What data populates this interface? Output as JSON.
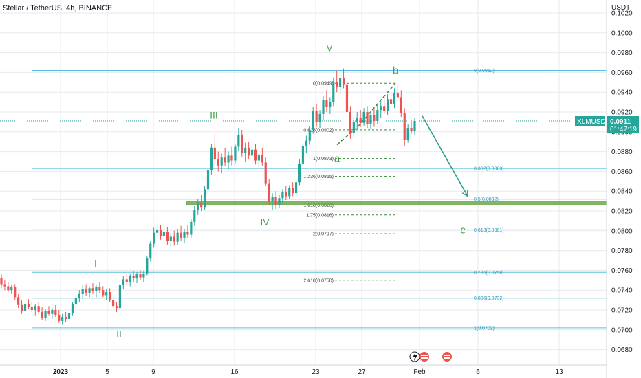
{
  "header": {
    "title": "Stellar / TetherUS, 4h, BINANCE"
  },
  "colors": {
    "up": "#26a69a",
    "down": "#ef5350",
    "fib": "#2196c4",
    "wave": "#43a047",
    "grid": "#e6e9ef",
    "support": "#6aaa4a"
  },
  "chart_data": {
    "type": "candlestick",
    "y_axis": {
      "unit_label": "USDT",
      "ticks": [
        "0.1020",
        "0.1000",
        "0.0980",
        "0.0960",
        "0.0940",
        "0.0920",
        "0.0900",
        "0.0880",
        "0.0860",
        "0.0840",
        "0.0820",
        "0.0800",
        "0.0780",
        "0.0760",
        "0.0740",
        "0.0720",
        "0.0700",
        "0.0680"
      ],
      "range": [
        0.0674,
        0.1025
      ]
    },
    "x_axis": {
      "ticks": [
        {
          "label": "2023",
          "x": 88
        },
        {
          "label": "5",
          "x": 156
        },
        {
          "label": "9",
          "x": 223
        },
        {
          "label": "16",
          "x": 341
        },
        {
          "label": "23",
          "x": 459
        },
        {
          "label": "27",
          "x": 526
        },
        {
          "label": "Feb",
          "x": 610
        },
        {
          "label": "6",
          "x": 695
        },
        {
          "label": "13",
          "x": 813
        }
      ]
    },
    "current_price": {
      "symbol": "XLMUSDT",
      "price": "0.0911",
      "countdown": "01:47:19",
      "value": 0.0911
    },
    "fib_retracement": [
      {
        "label": "0(0.0962)",
        "value": 0.0962
      },
      {
        "label": "0.382(0.0863)",
        "value": 0.0863
      },
      {
        "label": "0.5(0.0832)",
        "value": 0.0832
      },
      {
        "label": "0.618(0.0801)",
        "value": 0.0801
      },
      {
        "label": "0.786(0.0758)",
        "value": 0.0758
      },
      {
        "label": "0.886(0.0732)",
        "value": 0.0732
      },
      {
        "label": "1(0.0702)",
        "value": 0.0702
      }
    ],
    "fib_extension": [
      {
        "label": "0(0.0949)",
        "value": 0.0949
      },
      {
        "label": "0.618(0.0902)",
        "value": 0.0902
      },
      {
        "label": "1(0.0873)",
        "value": 0.0873
      },
      {
        "label": "1.236(0.0855)",
        "value": 0.0855
      },
      {
        "label": "1.618(0.0826)",
        "value": 0.0826
      },
      {
        "label": "1.75(0.0816)",
        "value": 0.0816
      },
      {
        "label": "2(0.0797)",
        "value": 0.0797
      },
      {
        "label": "2.618(0.0750)",
        "value": 0.075
      }
    ],
    "support_zone": {
      "low": 0.0826,
      "high": 0.083
    },
    "wave_labels": [
      {
        "text": "I",
        "value": 0.0767,
        "x": 139
      },
      {
        "text": "II",
        "value": 0.0696,
        "x": 173
      },
      {
        "text": "III",
        "value": 0.0917,
        "x": 311
      },
      {
        "text": "IV",
        "value": 0.0809,
        "x": 385
      },
      {
        "text": "V",
        "value": 0.0985,
        "x": 479
      },
      {
        "text": "a",
        "value": 0.0873,
        "x": 490
      },
      {
        "text": "b",
        "value": 0.0962,
        "x": 575
      },
      {
        "text": "c",
        "value": 0.0801,
        "x": 673
      }
    ],
    "forecast_arrow": {
      "from": {
        "x": 614,
        "value": 0.0916
      },
      "to": {
        "x": 680,
        "value": 0.0835
      }
    },
    "candles": [
      {
        "o": 0.0752,
        "h": 0.0756,
        "l": 0.0742,
        "c": 0.0746
      },
      {
        "o": 0.0746,
        "h": 0.075,
        "l": 0.074,
        "c": 0.0744
      },
      {
        "o": 0.0744,
        "h": 0.0748,
        "l": 0.0738,
        "c": 0.074
      },
      {
        "o": 0.074,
        "h": 0.0745,
        "l": 0.0736,
        "c": 0.0743
      },
      {
        "o": 0.0743,
        "h": 0.0746,
        "l": 0.073,
        "c": 0.0733
      },
      {
        "o": 0.0733,
        "h": 0.0736,
        "l": 0.0722,
        "c": 0.0725
      },
      {
        "o": 0.0725,
        "h": 0.073,
        "l": 0.0716,
        "c": 0.0719
      },
      {
        "o": 0.0719,
        "h": 0.0728,
        "l": 0.0716,
        "c": 0.0726
      },
      {
        "o": 0.0726,
        "h": 0.0731,
        "l": 0.0721,
        "c": 0.0723
      },
      {
        "o": 0.0723,
        "h": 0.0728,
        "l": 0.0718,
        "c": 0.072
      },
      {
        "o": 0.072,
        "h": 0.0726,
        "l": 0.0714,
        "c": 0.0724
      },
      {
        "o": 0.0724,
        "h": 0.0728,
        "l": 0.0716,
        "c": 0.0718
      },
      {
        "o": 0.0718,
        "h": 0.0723,
        "l": 0.071,
        "c": 0.0712
      },
      {
        "o": 0.0712,
        "h": 0.0721,
        "l": 0.0709,
        "c": 0.0719
      },
      {
        "o": 0.0719,
        "h": 0.0724,
        "l": 0.0714,
        "c": 0.0716
      },
      {
        "o": 0.0716,
        "h": 0.0722,
        "l": 0.0711,
        "c": 0.072
      },
      {
        "o": 0.072,
        "h": 0.0725,
        "l": 0.0713,
        "c": 0.0715
      },
      {
        "o": 0.0715,
        "h": 0.072,
        "l": 0.0707,
        "c": 0.0709
      },
      {
        "o": 0.0709,
        "h": 0.0716,
        "l": 0.0705,
        "c": 0.0713
      },
      {
        "o": 0.0713,
        "h": 0.0718,
        "l": 0.0708,
        "c": 0.0711
      },
      {
        "o": 0.0711,
        "h": 0.0719,
        "l": 0.0707,
        "c": 0.0717
      },
      {
        "o": 0.0717,
        "h": 0.0728,
        "l": 0.0714,
        "c": 0.0726
      },
      {
        "o": 0.0726,
        "h": 0.0735,
        "l": 0.0722,
        "c": 0.0732
      },
      {
        "o": 0.0732,
        "h": 0.074,
        "l": 0.0728,
        "c": 0.0736
      },
      {
        "o": 0.0736,
        "h": 0.0745,
        "l": 0.0731,
        "c": 0.0741
      },
      {
        "o": 0.0741,
        "h": 0.0746,
        "l": 0.0734,
        "c": 0.0737
      },
      {
        "o": 0.0737,
        "h": 0.0744,
        "l": 0.0733,
        "c": 0.0742
      },
      {
        "o": 0.0742,
        "h": 0.0747,
        "l": 0.0736,
        "c": 0.0739
      },
      {
        "o": 0.0739,
        "h": 0.0745,
        "l": 0.0733,
        "c": 0.0743
      },
      {
        "o": 0.0743,
        "h": 0.0748,
        "l": 0.0737,
        "c": 0.074
      },
      {
        "o": 0.074,
        "h": 0.0744,
        "l": 0.0733,
        "c": 0.0735
      },
      {
        "o": 0.0735,
        "h": 0.0741,
        "l": 0.073,
        "c": 0.0738
      },
      {
        "o": 0.0738,
        "h": 0.0742,
        "l": 0.0728,
        "c": 0.073
      },
      {
        "o": 0.073,
        "h": 0.0735,
        "l": 0.0722,
        "c": 0.0724
      },
      {
        "o": 0.0724,
        "h": 0.0728,
        "l": 0.0718,
        "c": 0.0722
      },
      {
        "o": 0.0722,
        "h": 0.0748,
        "l": 0.072,
        "c": 0.0745
      },
      {
        "o": 0.0745,
        "h": 0.0754,
        "l": 0.0741,
        "c": 0.0751
      },
      {
        "o": 0.0751,
        "h": 0.0756,
        "l": 0.0745,
        "c": 0.0748
      },
      {
        "o": 0.0748,
        "h": 0.0757,
        "l": 0.0744,
        "c": 0.0754
      },
      {
        "o": 0.0754,
        "h": 0.0759,
        "l": 0.0748,
        "c": 0.0752
      },
      {
        "o": 0.0752,
        "h": 0.0758,
        "l": 0.0747,
        "c": 0.0756
      },
      {
        "o": 0.0756,
        "h": 0.076,
        "l": 0.075,
        "c": 0.0753
      },
      {
        "o": 0.0753,
        "h": 0.0759,
        "l": 0.0748,
        "c": 0.0757
      },
      {
        "o": 0.0757,
        "h": 0.0775,
        "l": 0.0755,
        "c": 0.0772
      },
      {
        "o": 0.0772,
        "h": 0.079,
        "l": 0.0769,
        "c": 0.0787
      },
      {
        "o": 0.0787,
        "h": 0.0803,
        "l": 0.0783,
        "c": 0.0798
      },
      {
        "o": 0.0798,
        "h": 0.0808,
        "l": 0.0792,
        "c": 0.0801
      },
      {
        "o": 0.0801,
        "h": 0.0806,
        "l": 0.0791,
        "c": 0.0795
      },
      {
        "o": 0.0795,
        "h": 0.0803,
        "l": 0.0789,
        "c": 0.0799
      },
      {
        "o": 0.0799,
        "h": 0.0804,
        "l": 0.0786,
        "c": 0.079
      },
      {
        "o": 0.079,
        "h": 0.0798,
        "l": 0.0784,
        "c": 0.0794
      },
      {
        "o": 0.0794,
        "h": 0.08,
        "l": 0.0785,
        "c": 0.0789
      },
      {
        "o": 0.0789,
        "h": 0.0802,
        "l": 0.0786,
        "c": 0.0798
      },
      {
        "o": 0.0798,
        "h": 0.0805,
        "l": 0.079,
        "c": 0.0793
      },
      {
        "o": 0.0793,
        "h": 0.0802,
        "l": 0.0788,
        "c": 0.0799
      },
      {
        "o": 0.0799,
        "h": 0.0806,
        "l": 0.0792,
        "c": 0.0796
      },
      {
        "o": 0.0796,
        "h": 0.0812,
        "l": 0.0793,
        "c": 0.0809
      },
      {
        "o": 0.0809,
        "h": 0.0825,
        "l": 0.0805,
        "c": 0.0821
      },
      {
        "o": 0.0821,
        "h": 0.0832,
        "l": 0.0816,
        "c": 0.0828
      },
      {
        "o": 0.0828,
        "h": 0.0836,
        "l": 0.082,
        "c": 0.0824
      },
      {
        "o": 0.0824,
        "h": 0.0845,
        "l": 0.0821,
        "c": 0.0842
      },
      {
        "o": 0.0842,
        "h": 0.0865,
        "l": 0.0838,
        "c": 0.0861
      },
      {
        "o": 0.0861,
        "h": 0.0888,
        "l": 0.0857,
        "c": 0.0884
      },
      {
        "o": 0.0884,
        "h": 0.0898,
        "l": 0.0866,
        "c": 0.0872
      },
      {
        "o": 0.0872,
        "h": 0.088,
        "l": 0.086,
        "c": 0.0866
      },
      {
        "o": 0.0866,
        "h": 0.0878,
        "l": 0.0858,
        "c": 0.0874
      },
      {
        "o": 0.0874,
        "h": 0.0884,
        "l": 0.0865,
        "c": 0.0869
      },
      {
        "o": 0.0869,
        "h": 0.088,
        "l": 0.0862,
        "c": 0.0876
      },
      {
        "o": 0.0876,
        "h": 0.0885,
        "l": 0.0866,
        "c": 0.0871
      },
      {
        "o": 0.0871,
        "h": 0.0888,
        "l": 0.0868,
        "c": 0.0885
      },
      {
        "o": 0.0885,
        "h": 0.0904,
        "l": 0.0881,
        "c": 0.0897
      },
      {
        "o": 0.0897,
        "h": 0.0902,
        "l": 0.0875,
        "c": 0.0879
      },
      {
        "o": 0.0879,
        "h": 0.0889,
        "l": 0.087,
        "c": 0.0884
      },
      {
        "o": 0.0884,
        "h": 0.089,
        "l": 0.0872,
        "c": 0.0876
      },
      {
        "o": 0.0876,
        "h": 0.0888,
        "l": 0.0871,
        "c": 0.0882
      },
      {
        "o": 0.0882,
        "h": 0.0888,
        "l": 0.0867,
        "c": 0.0871
      },
      {
        "o": 0.0871,
        "h": 0.088,
        "l": 0.0864,
        "c": 0.0877
      },
      {
        "o": 0.0877,
        "h": 0.0884,
        "l": 0.0866,
        "c": 0.0869
      },
      {
        "o": 0.0869,
        "h": 0.0874,
        "l": 0.0845,
        "c": 0.0848
      },
      {
        "o": 0.0848,
        "h": 0.0852,
        "l": 0.0826,
        "c": 0.083
      },
      {
        "o": 0.083,
        "h": 0.0838,
        "l": 0.0821,
        "c": 0.0834
      },
      {
        "o": 0.0834,
        "h": 0.084,
        "l": 0.0822,
        "c": 0.0826
      },
      {
        "o": 0.0826,
        "h": 0.0836,
        "l": 0.0823,
        "c": 0.0833
      },
      {
        "o": 0.0833,
        "h": 0.0842,
        "l": 0.0828,
        "c": 0.0839
      },
      {
        "o": 0.0839,
        "h": 0.0845,
        "l": 0.0831,
        "c": 0.0835
      },
      {
        "o": 0.0835,
        "h": 0.0846,
        "l": 0.0832,
        "c": 0.0843
      },
      {
        "o": 0.0843,
        "h": 0.0849,
        "l": 0.0835,
        "c": 0.0838
      },
      {
        "o": 0.0838,
        "h": 0.0852,
        "l": 0.0836,
        "c": 0.0849
      },
      {
        "o": 0.0849,
        "h": 0.0872,
        "l": 0.0846,
        "c": 0.0868
      },
      {
        "o": 0.0868,
        "h": 0.089,
        "l": 0.0865,
        "c": 0.0886
      },
      {
        "o": 0.0886,
        "h": 0.0896,
        "l": 0.0879,
        "c": 0.0891
      },
      {
        "o": 0.0891,
        "h": 0.0906,
        "l": 0.0887,
        "c": 0.0902
      },
      {
        "o": 0.0902,
        "h": 0.0925,
        "l": 0.0898,
        "c": 0.0921
      },
      {
        "o": 0.0921,
        "h": 0.0928,
        "l": 0.0905,
        "c": 0.091
      },
      {
        "o": 0.091,
        "h": 0.0922,
        "l": 0.0904,
        "c": 0.0918
      },
      {
        "o": 0.0918,
        "h": 0.0936,
        "l": 0.0912,
        "c": 0.0932
      },
      {
        "o": 0.0932,
        "h": 0.0942,
        "l": 0.092,
        "c": 0.0925
      },
      {
        "o": 0.0925,
        "h": 0.0935,
        "l": 0.0918,
        "c": 0.093
      },
      {
        "o": 0.093,
        "h": 0.0955,
        "l": 0.0926,
        "c": 0.095
      },
      {
        "o": 0.095,
        "h": 0.0962,
        "l": 0.094,
        "c": 0.0945
      },
      {
        "o": 0.0945,
        "h": 0.0958,
        "l": 0.0938,
        "c": 0.0954
      },
      {
        "o": 0.0954,
        "h": 0.0964,
        "l": 0.0944,
        "c": 0.0948
      },
      {
        "o": 0.0948,
        "h": 0.0953,
        "l": 0.0915,
        "c": 0.092
      },
      {
        "o": 0.092,
        "h": 0.0926,
        "l": 0.0893,
        "c": 0.0899
      },
      {
        "o": 0.0899,
        "h": 0.0915,
        "l": 0.0894,
        "c": 0.091
      },
      {
        "o": 0.091,
        "h": 0.092,
        "l": 0.0903,
        "c": 0.0914
      },
      {
        "o": 0.0914,
        "h": 0.0922,
        "l": 0.0905,
        "c": 0.0909
      },
      {
        "o": 0.0909,
        "h": 0.0924,
        "l": 0.0906,
        "c": 0.092
      },
      {
        "o": 0.092,
        "h": 0.0926,
        "l": 0.0904,
        "c": 0.0908
      },
      {
        "o": 0.0908,
        "h": 0.0921,
        "l": 0.0903,
        "c": 0.0917
      },
      {
        "o": 0.0917,
        "h": 0.0924,
        "l": 0.0905,
        "c": 0.0911
      },
      {
        "o": 0.0911,
        "h": 0.0927,
        "l": 0.0908,
        "c": 0.0922
      },
      {
        "o": 0.0922,
        "h": 0.0931,
        "l": 0.0914,
        "c": 0.0926
      },
      {
        "o": 0.0926,
        "h": 0.0935,
        "l": 0.0918,
        "c": 0.0921
      },
      {
        "o": 0.0921,
        "h": 0.0938,
        "l": 0.0917,
        "c": 0.0933
      },
      {
        "o": 0.0933,
        "h": 0.0941,
        "l": 0.0922,
        "c": 0.0928
      },
      {
        "o": 0.0928,
        "h": 0.0944,
        "l": 0.0924,
        "c": 0.0939
      },
      {
        "o": 0.0939,
        "h": 0.0949,
        "l": 0.093,
        "c": 0.0935
      },
      {
        "o": 0.0935,
        "h": 0.0942,
        "l": 0.0915,
        "c": 0.0919
      },
      {
        "o": 0.0919,
        "h": 0.0924,
        "l": 0.0886,
        "c": 0.0892
      },
      {
        "o": 0.0892,
        "h": 0.0908,
        "l": 0.0889,
        "c": 0.0904
      },
      {
        "o": 0.0904,
        "h": 0.0912,
        "l": 0.0898,
        "c": 0.0901
      },
      {
        "o": 0.0901,
        "h": 0.0914,
        "l": 0.0897,
        "c": 0.0911
      }
    ]
  }
}
